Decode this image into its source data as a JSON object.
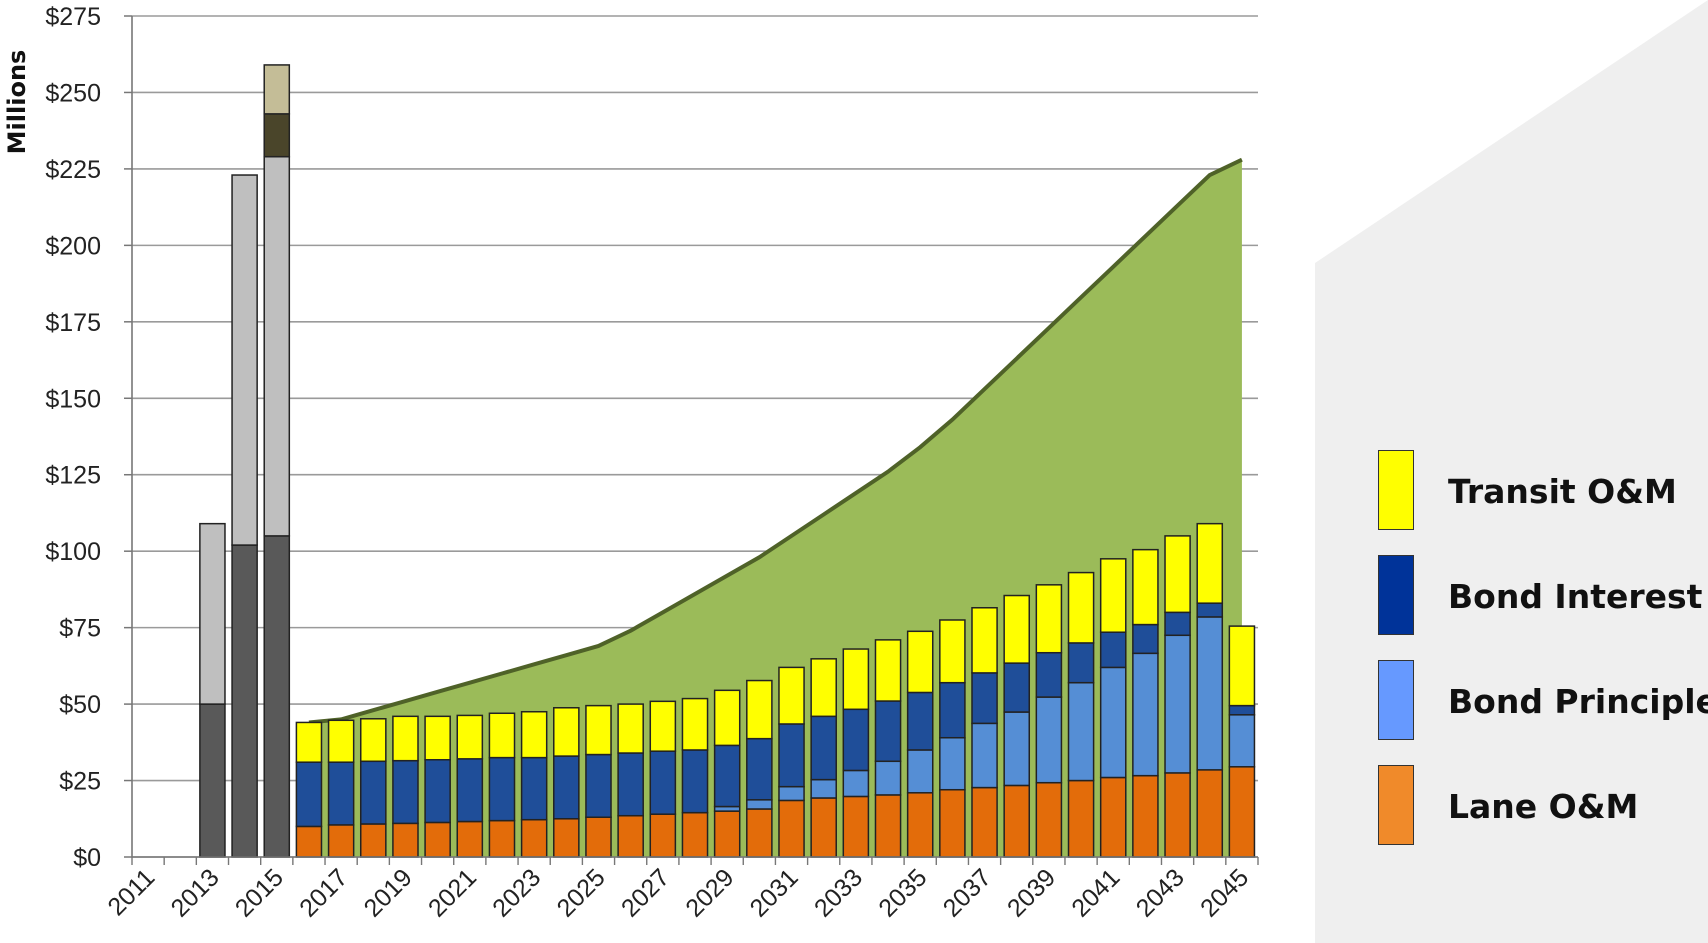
{
  "chart_data": {
    "type": "bar",
    "ylabel": "Millions",
    "xlabel": "",
    "ylim": [
      0,
      275
    ],
    "y_ticks": [
      0,
      25,
      50,
      75,
      100,
      125,
      150,
      175,
      200,
      225,
      250,
      275
    ],
    "y_tick_labels": [
      "$0",
      "$25",
      "$50",
      "$75",
      "$100",
      "$125",
      "$150",
      "$175",
      "$200",
      "$225",
      "$250",
      "$275"
    ],
    "x_tick_labels": [
      "2011",
      "2013",
      "2015",
      "2017",
      "2019",
      "2021",
      "2023",
      "2025",
      "2027",
      "2029",
      "2031",
      "2033",
      "2035",
      "2037",
      "2039",
      "2041",
      "2043",
      "2045"
    ],
    "years": [
      2011,
      2012,
      2013,
      2014,
      2015,
      2016,
      2017,
      2018,
      2019,
      2020,
      2021,
      2022,
      2023,
      2024,
      2025,
      2026,
      2027,
      2028,
      2029,
      2030,
      2031,
      2032,
      2033,
      2034,
      2035,
      2036,
      2037,
      2038,
      2039,
      2040,
      2041,
      2042,
      2043,
      2044,
      2045
    ],
    "grid": true,
    "colors": {
      "lane_om": "#E36C0A",
      "bond_principle": "#558ED5",
      "bond_interest": "#1F4E99",
      "transit_om": "#FFFF00",
      "revenue_area": "#9BBB59",
      "revenue_line": "#4F6228",
      "construction_dark": "#595959",
      "construction_light": "#BFBFBF",
      "construction_darkest": "#4A452A",
      "construction_tan": "#C4BD97",
      "legend_lane": "#F08A2A",
      "legend_principle": "#6699FF",
      "legend_interest": "#003399",
      "legend_transit": "#FFFF00"
    },
    "construction_series": [
      {
        "year": 2013,
        "segments": [
          50,
          59
        ]
      },
      {
        "year": 2014,
        "segments": [
          102,
          121
        ]
      },
      {
        "year": 2015,
        "segments": [
          105,
          124,
          14,
          16
        ]
      }
    ],
    "stacked_years": [
      2016,
      2017,
      2018,
      2019,
      2020,
      2021,
      2022,
      2023,
      2024,
      2025,
      2026,
      2027,
      2028,
      2029,
      2030,
      2031,
      2032,
      2033,
      2034,
      2035,
      2036,
      2037,
      2038,
      2039,
      2040,
      2041,
      2042,
      2043,
      2044,
      2045
    ],
    "series": [
      {
        "name": "Lane O&M",
        "key": "lane_om",
        "values": [
          10,
          10.5,
          10.8,
          11,
          11.3,
          11.6,
          11.9,
          12.2,
          12.5,
          13,
          13.5,
          14,
          14.5,
          15,
          15.7,
          18.5,
          19.3,
          19.8,
          20.3,
          21,
          22,
          22.7,
          23.4,
          24.3,
          25,
          26,
          26.6,
          27.5,
          28.5,
          29.5
        ]
      },
      {
        "name": "Bond Principle",
        "key": "bond_principle",
        "values": [
          0,
          0,
          0,
          0,
          0,
          0,
          0,
          0,
          0,
          0,
          0,
          0,
          0,
          1.5,
          3,
          4.5,
          6,
          8.5,
          11,
          14,
          17,
          21,
          24,
          28,
          32,
          36,
          40,
          45,
          50,
          17
        ]
      },
      {
        "name": "Bond Interest",
        "key": "bond_interest",
        "values": [
          21,
          20.5,
          20.5,
          20.5,
          20.5,
          20.5,
          20.6,
          20.3,
          20.5,
          20.5,
          20.5,
          20.6,
          20.5,
          20,
          20,
          20.5,
          20.7,
          20,
          19.7,
          18.8,
          18,
          16.5,
          16,
          14.5,
          13,
          11.5,
          9.4,
          7.5,
          4.5,
          3
        ]
      },
      {
        "name": "Transit O&M",
        "key": "transit_om",
        "values": [
          13,
          13.7,
          13.9,
          14.5,
          14.2,
          14.2,
          14.5,
          15,
          15.8,
          16,
          16,
          16.3,
          16.8,
          18,
          19,
          18.5,
          18.8,
          19.7,
          20,
          20,
          20.5,
          21.3,
          22.1,
          22.2,
          23,
          24,
          24.5,
          25,
          26,
          26
        ]
      }
    ],
    "revenue_area": {
      "years": [
        2016,
        2017,
        2018,
        2019,
        2020,
        2021,
        2022,
        2023,
        2024,
        2025,
        2026,
        2027,
        2028,
        2029,
        2030,
        2031,
        2032,
        2033,
        2034,
        2035,
        2036,
        2037,
        2038,
        2039,
        2040,
        2041,
        2042,
        2043,
        2044,
        2045
      ],
      "values": [
        44,
        45,
        48,
        51,
        54,
        57,
        60,
        63,
        66,
        69,
        74,
        80,
        86,
        92,
        98,
        105,
        112,
        119,
        126,
        134,
        143,
        153,
        163,
        173,
        183,
        193,
        203,
        213,
        223,
        228
      ]
    },
    "legend": {
      "placement": "right",
      "entries": [
        {
          "label": "Transit O&M",
          "color_key": "legend_transit"
        },
        {
          "label": "Bond Interest",
          "color_key": "legend_interest"
        },
        {
          "label": "Bond Principle",
          "color_key": "legend_principle"
        },
        {
          "label": "Lane O&M",
          "color_key": "legend_lane"
        }
      ]
    }
  }
}
